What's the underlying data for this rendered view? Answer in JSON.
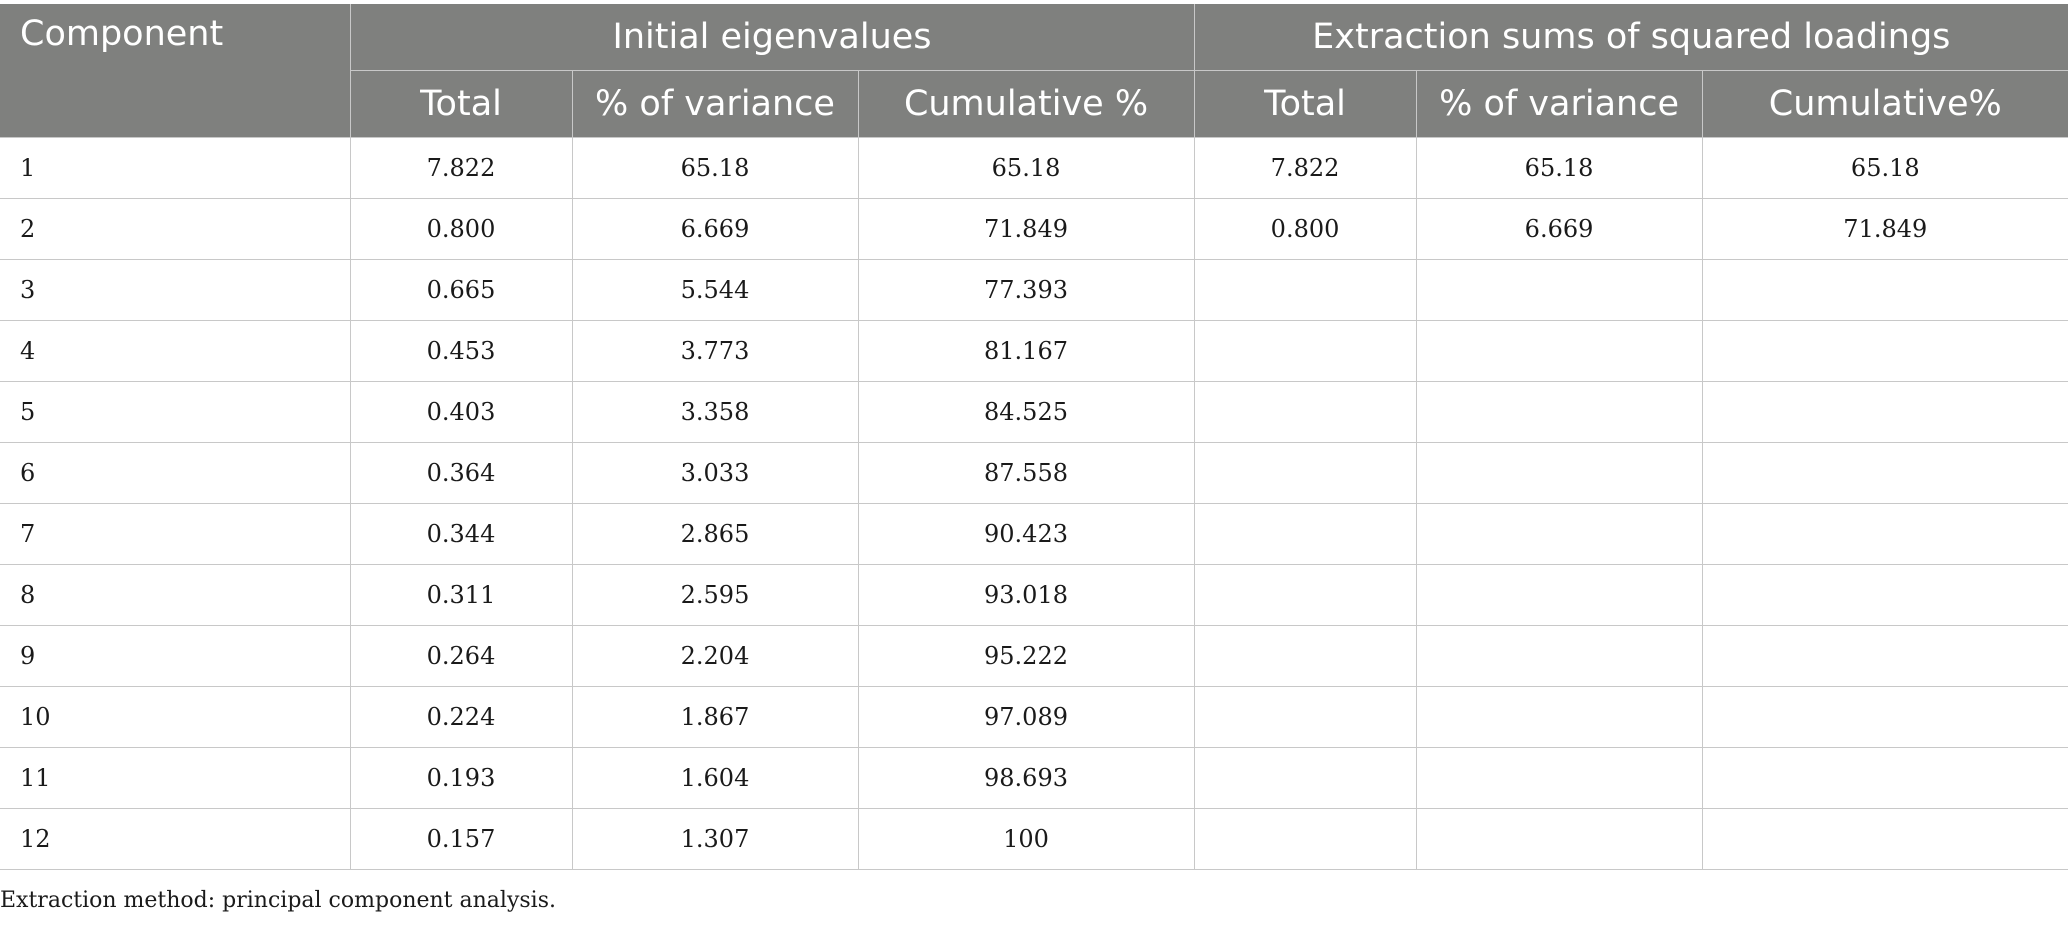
{
  "table": {
    "header_groups": {
      "component": "Component",
      "initial": "Initial eigenvalues",
      "extraction": "Extraction sums of squared loadings"
    },
    "subheaders": {
      "initial_total": "Total",
      "initial_variance": "% of variance",
      "initial_cumulative": "Cumulative %",
      "extraction_total": "Total",
      "extraction_variance": "% of variance",
      "extraction_cumulative": "Cumulative%"
    },
    "rows": [
      [
        "1",
        "7.822",
        "65.18",
        "65.18",
        "7.822",
        "65.18",
        "65.18"
      ],
      [
        "2",
        "0.800",
        "6.669",
        "71.849",
        "0.800",
        "6.669",
        "71.849"
      ],
      [
        "3",
        "0.665",
        "5.544",
        "77.393",
        "",
        "",
        ""
      ],
      [
        "4",
        "0.453",
        "3.773",
        "81.167",
        "",
        "",
        ""
      ],
      [
        "5",
        "0.403",
        "3.358",
        "84.525",
        "",
        "",
        ""
      ],
      [
        "6",
        "0.364",
        "3.033",
        "87.558",
        "",
        "",
        ""
      ],
      [
        "7",
        "0.344",
        "2.865",
        "90.423",
        "",
        "",
        ""
      ],
      [
        "8",
        "0.311",
        "2.595",
        "93.018",
        "",
        "",
        ""
      ],
      [
        "9",
        "0.264",
        "2.204",
        "95.222",
        "",
        "",
        ""
      ],
      [
        "10",
        "0.224",
        "1.867",
        "97.089",
        "",
        "",
        ""
      ],
      [
        "11",
        "0.193",
        "1.604",
        "98.693",
        "",
        "",
        ""
      ],
      [
        "12",
        "0.157",
        "1.307",
        "100",
        "",
        "",
        ""
      ]
    ]
  },
  "footnote": "Extraction method: principal component analysis.",
  "colors": {
    "header_bg": "#7f807e",
    "header_text": "#ffffff",
    "grid": "#c8c8c8",
    "body_text": "#1a1a1a"
  }
}
